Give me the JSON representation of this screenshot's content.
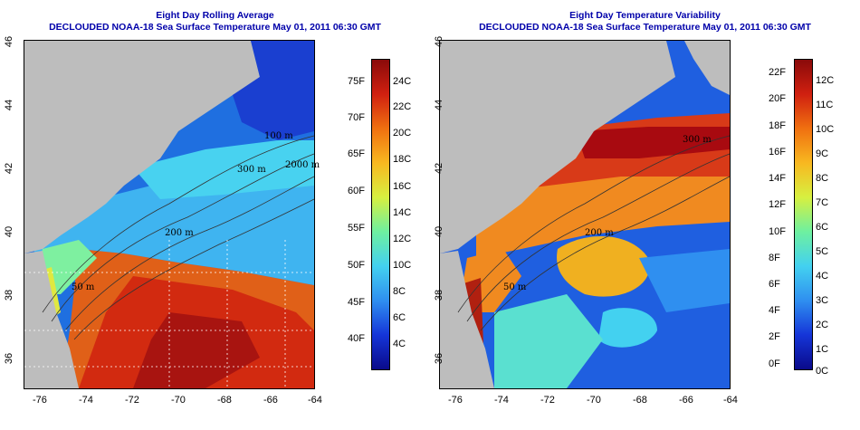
{
  "colors": {
    "land": "#bdbdbd",
    "panel_title": "#0000aa",
    "scale": [
      "#0a0a8a",
      "#1535d8",
      "#2f8ff0",
      "#43d1f0",
      "#6ef0a0",
      "#d7f040",
      "#f8b820",
      "#f07010",
      "#d02010",
      "#8a0a0a"
    ]
  },
  "left": {
    "title1": "Eight Day Rolling Average",
    "title2": "DECLOUDED NOAA-18 Sea Surface Temperature May 01, 2011 06:30 GMT",
    "lat_labels": [
      "46",
      "44",
      "42",
      "40",
      "38",
      "36"
    ],
    "lon_labels": [
      "-76",
      "-74",
      "-72",
      "-70",
      "-68",
      "-66",
      "-64"
    ],
    "contour_labels": [
      "100 m",
      "200 m",
      "300 m",
      "2000 m",
      "50 m"
    ],
    "colorbar_left": [
      "75F",
      "70F",
      "65F",
      "60F",
      "55F",
      "50F",
      "45F",
      "40F"
    ],
    "colorbar_right": [
      "24C",
      "22C",
      "20C",
      "18C",
      "16C",
      "14C",
      "12C",
      "10C",
      "8C",
      "6C",
      "4C"
    ]
  },
  "right": {
    "title1": "Eight Day Temperature Variability",
    "title2": "DECLOUDED NOAA-18 Sea Surface Temperature May 01, 2011 06:30 GMT",
    "lat_labels": [
      "46",
      "44",
      "42",
      "40",
      "38",
      "36"
    ],
    "lon_labels": [
      "-76",
      "-74",
      "-72",
      "-70",
      "-68",
      "-66",
      "-64"
    ],
    "contour_labels": [
      "200 m",
      "300 m",
      "50 m"
    ],
    "colorbar_left": [
      "22F",
      "20F",
      "18F",
      "16F",
      "14F",
      "12F",
      "10F",
      "8F",
      "6F",
      "4F",
      "2F",
      "0F"
    ],
    "colorbar_right": [
      "12C",
      "11C",
      "10C",
      "9C",
      "8C",
      "7C",
      "6C",
      "5C",
      "4C",
      "3C",
      "2C",
      "1C",
      "0C"
    ]
  }
}
